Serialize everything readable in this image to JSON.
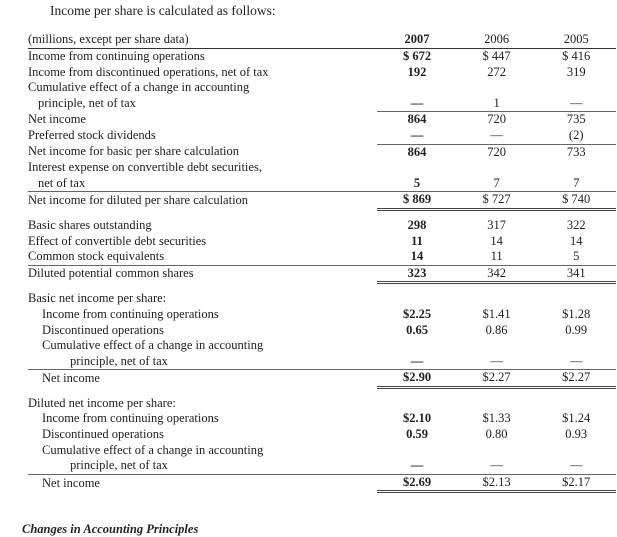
{
  "intro": "Income per share is calculated as follows:",
  "header": {
    "label": "(millions, except per share data)",
    "years": [
      "2007",
      "2006",
      "2005"
    ]
  },
  "rows": {
    "r1": {
      "label": "Income from continuing operations",
      "v": [
        "$ 672",
        "$ 447",
        "$ 416"
      ]
    },
    "r2": {
      "label": "Income from discontinued operations, net of tax",
      "v": [
        "192",
        "272",
        "319"
      ]
    },
    "r3a": {
      "label": "Cumulative effect of a change in accounting"
    },
    "r3b": {
      "label": "principle, net of tax",
      "v": [
        "—",
        "1",
        "—"
      ]
    },
    "r4": {
      "label": "Net income",
      "v": [
        "864",
        "720",
        "735"
      ]
    },
    "r5": {
      "label": "Preferred stock dividends",
      "v": [
        "—",
        "—",
        "(2)"
      ]
    },
    "r6": {
      "label": "Net income for basic per share calculation",
      "v": [
        "864",
        "720",
        "733"
      ]
    },
    "r7a": {
      "label": "Interest expense on convertible debt securities,"
    },
    "r7b": {
      "label": "net of tax",
      "v": [
        "5",
        "7",
        "7"
      ]
    },
    "r8": {
      "label": "Net income for diluted per share calculation",
      "v": [
        "$ 869",
        "$ 727",
        "$ 740"
      ]
    },
    "r9": {
      "label": "Basic shares outstanding",
      "v": [
        "298",
        "317",
        "322"
      ]
    },
    "r10": {
      "label": "Effect of convertible debt securities",
      "v": [
        "11",
        "14",
        "14"
      ]
    },
    "r11": {
      "label": "Common stock equivalents",
      "v": [
        "14",
        "11",
        "5"
      ]
    },
    "r12": {
      "label": "Diluted potential common shares",
      "v": [
        "323",
        "342",
        "341"
      ]
    },
    "r13": {
      "label": "Basic net income per share:"
    },
    "r14": {
      "label": "Income from continuing operations",
      "v": [
        "$2.25",
        "$1.41",
        "$1.28"
      ]
    },
    "r15": {
      "label": "Discontinued operations",
      "v": [
        "0.65",
        "0.86",
        "0.99"
      ]
    },
    "r16a": {
      "label": "Cumulative effect of a change in accounting"
    },
    "r16b": {
      "label": "principle, net of tax",
      "v": [
        "—",
        "—",
        "—"
      ]
    },
    "r17": {
      "label": "Net income",
      "v": [
        "$2.90",
        "$2.27",
        "$2.27"
      ]
    },
    "r18": {
      "label": "Diluted net income per share:"
    },
    "r19": {
      "label": "Income from continuing operations",
      "v": [
        "$2.10",
        "$1.33",
        "$1.24"
      ]
    },
    "r20": {
      "label": "Discontinued operations",
      "v": [
        "0.59",
        "0.80",
        "0.93"
      ]
    },
    "r21a": {
      "label": "Cumulative effect of a change in accounting"
    },
    "r21b": {
      "label": "principle, net of tax",
      "v": [
        "—",
        "—",
        "—"
      ]
    },
    "r22": {
      "label": "Net income",
      "v": [
        "$2.69",
        "$2.13",
        "$2.17"
      ]
    }
  },
  "next_section_heading": "Changes in Accounting Principles"
}
